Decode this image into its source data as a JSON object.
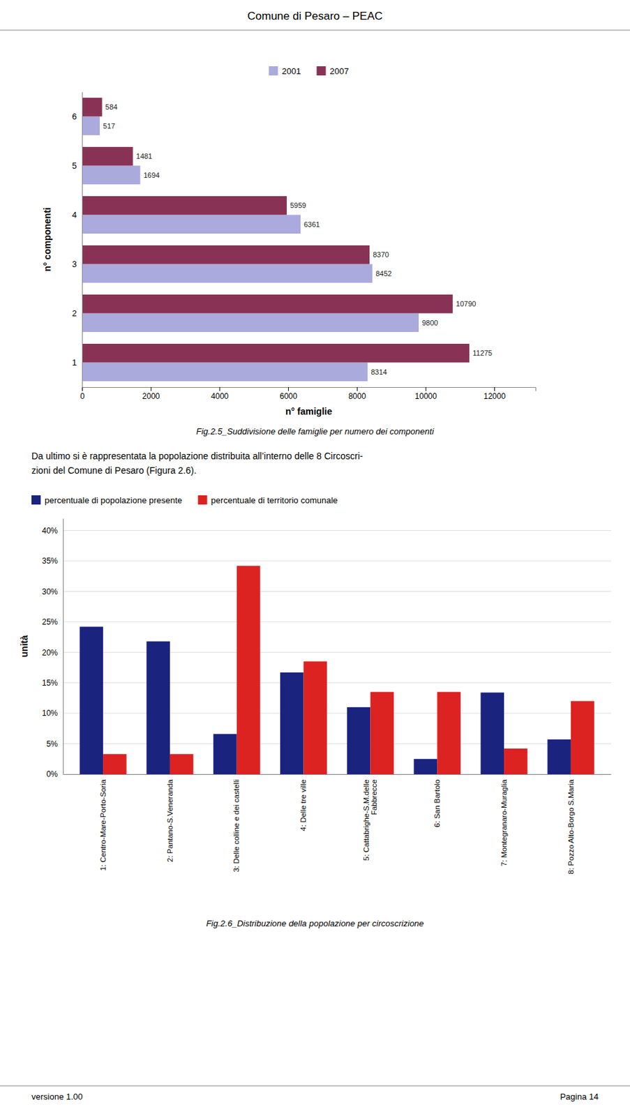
{
  "title": "Comune di Pesaro – PEAC",
  "text": [
    "Da ultimo si è rappresentata la popolazione distribuita all’interno delle 8 Circoscri-",
    "zioni del Comune di Pesaro (Figura 2.6)."
  ],
  "footer": [
    "versione 1.00",
    "Pagina 14"
  ],
  "chart_data": [
    {
      "type": "bar",
      "orientation": "horizontal",
      "categories": [
        "1",
        "2",
        "3",
        "4",
        "5",
        "6"
      ],
      "series": [
        {
          "name": "2001",
          "color": "#aaaadd",
          "values": [
            8314,
            9800,
            8452,
            6361,
            1694,
            517
          ]
        },
        {
          "name": "2007",
          "color": "#883355",
          "values": [
            11275,
            10790,
            8370,
            5959,
            1481,
            584
          ]
        }
      ],
      "xlabel": "n° famiglie",
      "ylabel": "n° componenti",
      "xlim": [
        0,
        13200
      ],
      "xticks": [
        0,
        2000,
        4000,
        6000,
        8000,
        10000,
        12000
      ],
      "data_labels": true,
      "grid": false,
      "legend": "top",
      "annotations": [
        "Fig.2.5_Suddivisione delle famiglie per numero dei componenti"
      ]
    },
    {
      "type": "bar",
      "categories": [
        "1: Centro-Mare-Porto-Soria",
        "2: Pantano-S.Veneranda",
        "3: Delle colline e dei castelli",
        "4: Delle tre ville",
        "5: Cattabrighe-S.M.delle\nFabbrecce",
        "6: San Bartolo",
        "7: Montegranaro-Muraglia",
        "8: Pozzo Alto-Borgo S.Maria"
      ],
      "series": [
        {
          "name": "percentuale di popolazione presente",
          "color": "#1a237e",
          "values": [
            24.2,
            21.8,
            6.6,
            16.7,
            11.0,
            2.5,
            13.4,
            5.7
          ]
        },
        {
          "name": "percentuale di territorio comunale",
          "color": "#dd2222",
          "values": [
            3.3,
            3.3,
            34.2,
            18.5,
            13.5,
            13.5,
            4.2,
            12.0
          ]
        }
      ],
      "ylabel": "unità",
      "ylim": [
        0,
        42
      ],
      "yticks": [
        {
          "value": 0,
          "label": "0%"
        },
        {
          "value": 5,
          "label": "5%"
        },
        {
          "value": 10,
          "label": "10%"
        },
        {
          "value": 15,
          "label": "15%"
        },
        {
          "value": 20,
          "label": "20%"
        },
        {
          "value": 25,
          "label": "25%"
        },
        {
          "value": 30,
          "label": "30%"
        },
        {
          "value": 35,
          "label": "35%"
        },
        {
          "value": 40,
          "label": "40%"
        }
      ],
      "grid": true,
      "legend": "top-left",
      "annotations": [
        "Fig.2.6_Distribuzione della popolazione per circoscrizione"
      ]
    }
  ]
}
